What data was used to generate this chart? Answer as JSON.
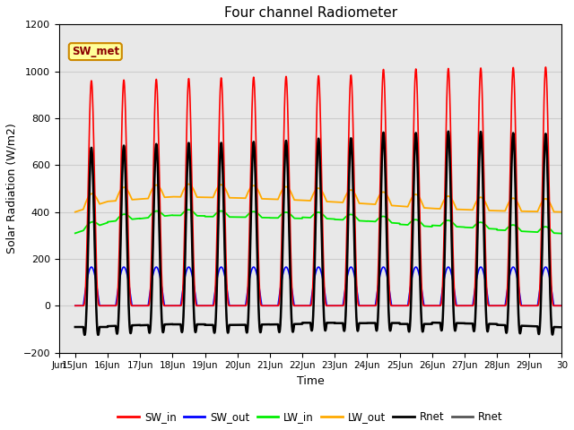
{
  "title": "Four channel Radiometer",
  "xlabel": "Time",
  "ylabel": "Solar Radiation (W/m2)",
  "ylim": [
    -200,
    1200
  ],
  "xlim": [
    14.5,
    30
  ],
  "yticks": [
    -200,
    0,
    200,
    400,
    600,
    800,
    1000,
    1200
  ],
  "xtick_labels": [
    "Jun",
    "15Jun",
    "16Jun",
    "17Jun",
    "18Jun",
    "19Jun",
    "20Jun",
    "21Jun",
    "22Jun",
    "23Jun",
    "24Jun",
    "25Jun",
    "26Jun",
    "27Jun",
    "28Jun",
    "29Jun",
    "30"
  ],
  "xtick_positions": [
    14.5,
    15,
    16,
    17,
    18,
    19,
    20,
    21,
    22,
    23,
    24,
    25,
    26,
    27,
    28,
    29,
    30
  ],
  "grid_color": "#cccccc",
  "background_color": "#e8e8e8",
  "legend_label": "SW_met",
  "colors": {
    "SW_in": "#ff0000",
    "SW_out": "#0000ff",
    "LW_in": "#00ee00",
    "LW_out": "#ffaa00",
    "Rnet_black": "#000000",
    "Rnet_dark": "#555555"
  },
  "day_start": 15,
  "day_end": 30,
  "num_days": 15,
  "points_per_day": 480
}
